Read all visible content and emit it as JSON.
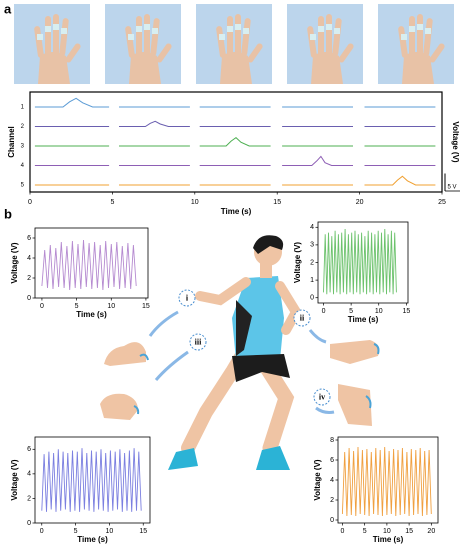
{
  "panel_labels": [
    "a",
    "b"
  ],
  "markers": [
    "i",
    "ii",
    "iii",
    "iv"
  ],
  "chart_data": [
    {
      "type": "line",
      "xlabel": "Time (s)",
      "ylabel": "Channel",
      "y2label": "Voltage (V)",
      "xlim": [
        0,
        25
      ],
      "xticks": [
        0,
        5,
        10,
        15,
        20,
        25
      ],
      "scale_bar": {
        "value": 5,
        "label": "5 V"
      },
      "series": [
        {
          "name": "1",
          "color": "#5b9bd5",
          "x": [
            0.3,
            2.0,
            2.4,
            2.8,
            3.2,
            3.8,
            4.8,
            5.05,
            5.4,
            9.7,
            9.95,
            10.3,
            14.6,
            14.85,
            15.3,
            19.6,
            19.85,
            20.3,
            24.6
          ],
          "values": [
            0,
            0,
            1.5,
            2.5,
            1.2,
            0,
            0,
            null,
            0,
            0,
            null,
            0,
            0,
            null,
            0,
            0,
            null,
            0,
            0
          ]
        },
        {
          "name": "2",
          "color": "#6a5fb0",
          "x": [
            0.3,
            4.8,
            5.05,
            5.4,
            7.0,
            7.3,
            7.6,
            7.9,
            8.4,
            9.7,
            9.95,
            10.3,
            14.6,
            14.85,
            15.3,
            19.6,
            19.85,
            20.3,
            24.6
          ],
          "values": [
            0,
            0,
            null,
            0,
            0,
            0.9,
            1.5,
            0.7,
            0,
            0,
            null,
            0,
            0,
            null,
            0,
            0,
            null,
            0,
            0
          ]
        },
        {
          "name": "3",
          "color": "#4caf50",
          "x": [
            0.3,
            4.8,
            5.05,
            5.4,
            9.7,
            9.95,
            10.3,
            11.9,
            12.2,
            12.5,
            12.8,
            13.3,
            14.6,
            14.85,
            15.3,
            19.6,
            19.85,
            20.3,
            24.6
          ],
          "values": [
            0,
            0,
            null,
            0,
            0,
            null,
            0,
            0,
            1.4,
            2.4,
            1.1,
            0,
            0,
            null,
            0,
            0,
            null,
            0,
            0
          ]
        },
        {
          "name": "4",
          "color": "#8e5fb5",
          "x": [
            0.3,
            4.8,
            5.05,
            5.4,
            9.7,
            9.95,
            10.3,
            14.6,
            14.85,
            15.3,
            17.1,
            17.4,
            17.65,
            17.9,
            18.3,
            19.6,
            19.85,
            20.3,
            24.6
          ],
          "values": [
            0,
            0,
            null,
            0,
            0,
            null,
            0,
            0,
            null,
            0,
            0,
            1.3,
            2.6,
            0.8,
            0,
            0,
            null,
            0,
            0
          ]
        },
        {
          "name": "5",
          "color": "#f0a030",
          "x": [
            0.3,
            4.8,
            5.05,
            5.4,
            9.7,
            9.95,
            10.3,
            14.6,
            14.85,
            15.3,
            19.6,
            19.85,
            20.3,
            22.0,
            22.3,
            22.6,
            22.9,
            23.4,
            24.6
          ],
          "values": [
            0,
            0,
            null,
            0,
            0,
            null,
            0,
            0,
            null,
            0,
            0,
            null,
            0,
            0,
            1.4,
            2.5,
            1.2,
            0,
            0
          ]
        }
      ]
    },
    {
      "type": "line",
      "xlabel": "Time (s)",
      "ylabel": "Voltage (V)",
      "color": "#b58ad0",
      "xlim": [
        -1,
        15.3
      ],
      "xticks": [
        0,
        5,
        10,
        15
      ],
      "ylim": [
        0,
        7
      ],
      "yticks": [
        0,
        2,
        4,
        6
      ],
      "x": [
        0,
        0.4,
        0.8,
        1.2,
        1.6,
        2,
        2.4,
        2.8,
        3.2,
        3.6,
        4,
        4.4,
        4.8,
        5.2,
        5.6,
        6,
        6.4,
        6.8,
        7.2,
        7.6,
        8,
        8.4,
        8.8,
        9.2,
        9.6,
        10,
        10.4,
        10.8,
        11.2,
        11.6,
        12,
        12.4,
        12.8,
        13.2,
        13.6
      ],
      "values": [
        1.2,
        4.8,
        1.0,
        5.3,
        0.9,
        5.0,
        1.1,
        5.6,
        1.0,
        5.2,
        0.8,
        5.7,
        1.0,
        5.4,
        0.9,
        5.8,
        1.1,
        5.5,
        0.9,
        5.6,
        1.0,
        5.3,
        0.8,
        5.7,
        1.0,
        5.4,
        1.1,
        5.6,
        0.9,
        5.2,
        1.0,
        5.5,
        0.9,
        5.3,
        1.2
      ]
    },
    {
      "type": "line",
      "xlabel": "Time (s)",
      "ylabel": "Voltage (V)",
      "color": "#6cc26c",
      "xlim": [
        -1,
        15.3
      ],
      "xticks": [
        0,
        5,
        10,
        15
      ],
      "ylim": [
        -0.3,
        4.3
      ],
      "yticks": [
        0,
        1,
        2,
        3,
        4
      ],
      "x": [
        0,
        0.3,
        0.6,
        0.9,
        1.2,
        1.5,
        1.8,
        2.1,
        2.4,
        2.7,
        3,
        3.3,
        3.6,
        3.9,
        4.2,
        4.5,
        4.8,
        5.1,
        5.4,
        5.7,
        6,
        6.3,
        6.6,
        6.9,
        7.2,
        7.5,
        7.8,
        8.1,
        8.4,
        8.7,
        9,
        9.3,
        9.6,
        9.9,
        10.2,
        10.5,
        10.8,
        11.1,
        11.4,
        11.7,
        12,
        12.3,
        12.6,
        12.9,
        13.2
      ],
      "values": [
        0.3,
        3.6,
        0.2,
        3.7,
        0.3,
        3.5,
        0.2,
        3.8,
        0.3,
        3.6,
        0.2,
        3.7,
        0.3,
        3.9,
        0.2,
        3.6,
        0.3,
        3.7,
        0.2,
        3.8,
        0.3,
        3.6,
        0.2,
        3.7,
        0.3,
        3.5,
        0.2,
        3.8,
        0.3,
        3.7,
        0.2,
        3.6,
        0.3,
        3.8,
        0.2,
        3.7,
        0.3,
        3.9,
        0.2,
        3.6,
        0.3,
        3.8,
        0.2,
        3.7,
        0.3
      ]
    },
    {
      "type": "line",
      "xlabel": "Time (s)",
      "ylabel": "Voltage (V)",
      "color": "#7b7fe0",
      "xlim": [
        -1,
        16
      ],
      "xticks": [
        0,
        5,
        10,
        15
      ],
      "ylim": [
        0,
        7
      ],
      "yticks": [
        0,
        2,
        4,
        6
      ],
      "x": [
        0,
        0.35,
        0.7,
        1.05,
        1.4,
        1.75,
        2.1,
        2.45,
        2.8,
        3.15,
        3.5,
        3.85,
        4.2,
        4.55,
        4.9,
        5.25,
        5.6,
        5.95,
        6.3,
        6.65,
        7,
        7.35,
        7.7,
        8.05,
        8.4,
        8.75,
        9.1,
        9.45,
        9.8,
        10.15,
        10.5,
        10.85,
        11.2,
        11.55,
        11.9,
        12.25,
        12.6,
        12.95,
        13.3,
        13.65,
        14,
        14.35,
        14.7
      ],
      "values": [
        1.0,
        5.6,
        0.9,
        5.8,
        1.1,
        5.7,
        0.9,
        6.0,
        1.0,
        5.8,
        1.1,
        5.7,
        0.9,
        5.9,
        1.0,
        5.8,
        0.9,
        6.1,
        1.1,
        5.7,
        1.0,
        5.9,
        0.9,
        5.8,
        1.1,
        6.0,
        1.0,
        5.7,
        0.9,
        5.9,
        1.0,
        5.8,
        1.1,
        6.0,
        0.9,
        5.7,
        1.0,
        5.9,
        0.9,
        6.1,
        1.0,
        5.8,
        1.0
      ]
    },
    {
      "type": "line",
      "xlabel": "Time (s)",
      "ylabel": "Voltage (V)",
      "color": "#f0a040",
      "xlim": [
        -1,
        21.5
      ],
      "xticks": [
        0,
        5,
        10,
        15,
        20
      ],
      "ylim": [
        -0.3,
        8.3
      ],
      "yticks": [
        0,
        2,
        4,
        6,
        8
      ],
      "x": [
        0,
        0.5,
        1,
        1.5,
        2,
        2.5,
        3,
        3.5,
        4,
        4.5,
        5,
        5.5,
        6,
        6.5,
        7,
        7.5,
        8,
        8.5,
        9,
        9.5,
        10,
        10.5,
        11,
        11.5,
        12,
        12.5,
        13,
        13.5,
        14,
        14.5,
        15,
        15.5,
        16,
        16.5,
        17,
        17.5,
        18,
        18.5,
        19,
        19.5,
        20
      ],
      "values": [
        0.6,
        6.8,
        0.4,
        7.2,
        0.5,
        6.9,
        0.4,
        7.3,
        0.6,
        7.0,
        0.5,
        7.1,
        0.4,
        6.8,
        0.6,
        7.2,
        0.5,
        7.0,
        0.4,
        7.3,
        0.5,
        6.9,
        0.6,
        7.1,
        0.4,
        7.0,
        0.5,
        7.2,
        0.6,
        6.8,
        0.4,
        7.1,
        0.5,
        7.0,
        0.6,
        7.2,
        0.4,
        6.9,
        0.5,
        7.0,
        0.6
      ]
    }
  ]
}
